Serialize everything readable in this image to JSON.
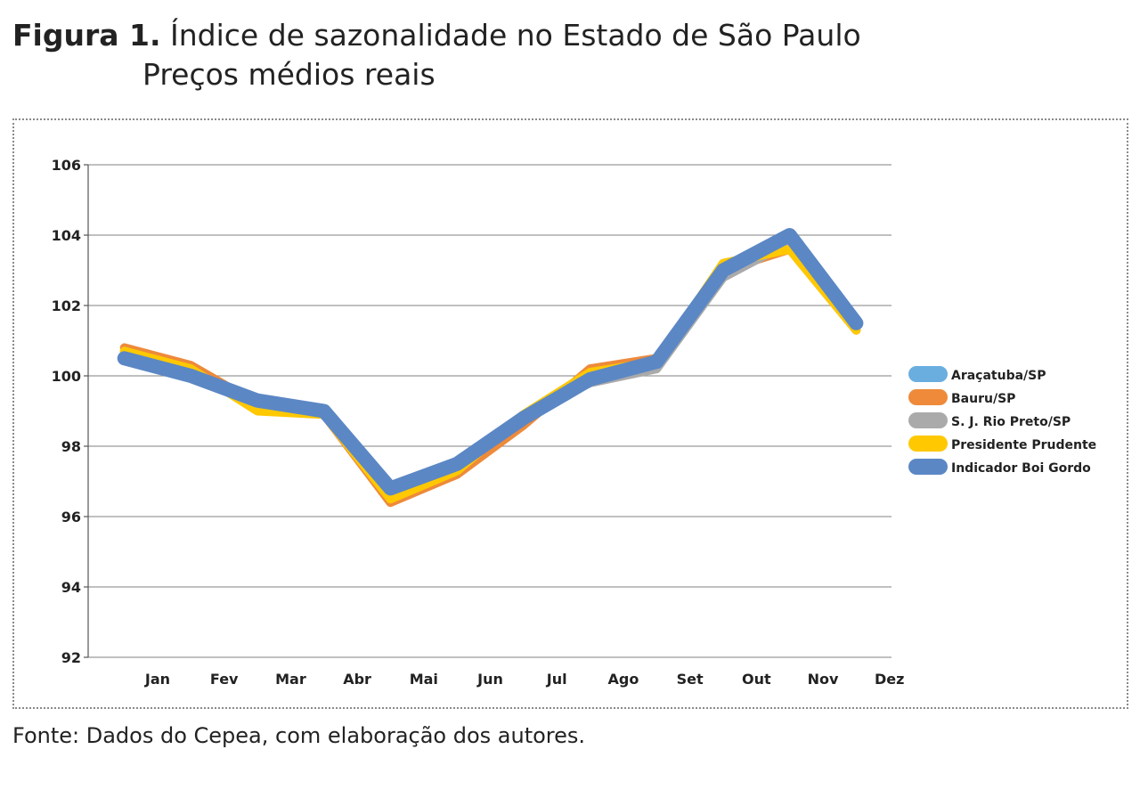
{
  "figure": {
    "label": "Figura 1.",
    "title_line1": "Índice de sazonalidade no Estado de São Paulo",
    "title_line2": "Preços médios reais",
    "source": "Fonte: Dados do Cepea, com elaboração dos autores."
  },
  "chart_data": {
    "type": "line",
    "title": "Índice de sazonalidade no Estado de São Paulo — Preços médios reais",
    "xlabel": "",
    "ylabel": "",
    "ylim": [
      92,
      106
    ],
    "yticks": [
      "92",
      "94",
      "96",
      "98",
      "100",
      "102",
      "104",
      "106"
    ],
    "categories": [
      "Jan",
      "Fev",
      "Mar",
      "Abr",
      "Mai",
      "Jun",
      "Jul",
      "Ago",
      "Set",
      "Out",
      "Nov",
      "Dez"
    ],
    "grid": true,
    "legend_position": "right",
    "series": [
      {
        "name": "Araçatuba/SP",
        "color": "#6aaee0",
        "values": [
          100.6,
          100.1,
          99.2,
          98.9,
          96.5,
          97.4,
          98.8,
          100.0,
          100.3,
          102.9,
          103.8,
          101.3
        ]
      },
      {
        "name": "Bauru/SP",
        "color": "#ee8a3a",
        "values": [
          100.8,
          100.3,
          99.2,
          98.9,
          96.4,
          97.2,
          98.6,
          100.2,
          100.5,
          103.0,
          103.6,
          101.3
        ]
      },
      {
        "name": "S. J. Rio Preto/SP",
        "color": "#aaaaaa",
        "values": [
          100.7,
          100.1,
          99.1,
          98.9,
          96.6,
          97.5,
          98.9,
          99.8,
          100.2,
          102.8,
          103.8,
          101.4
        ]
      },
      {
        "name": "Presidente Prudente",
        "color": "#ffc800",
        "values": [
          100.7,
          100.2,
          99.0,
          98.9,
          96.5,
          97.3,
          98.9,
          100.1,
          100.4,
          103.2,
          103.6,
          101.3
        ]
      },
      {
        "name": "Indicador Boi Gordo",
        "color": "#5b87c5",
        "values": [
          100.5,
          100.0,
          99.3,
          99.0,
          96.8,
          97.5,
          98.8,
          99.9,
          100.4,
          103.0,
          104.0,
          101.5
        ]
      }
    ]
  }
}
